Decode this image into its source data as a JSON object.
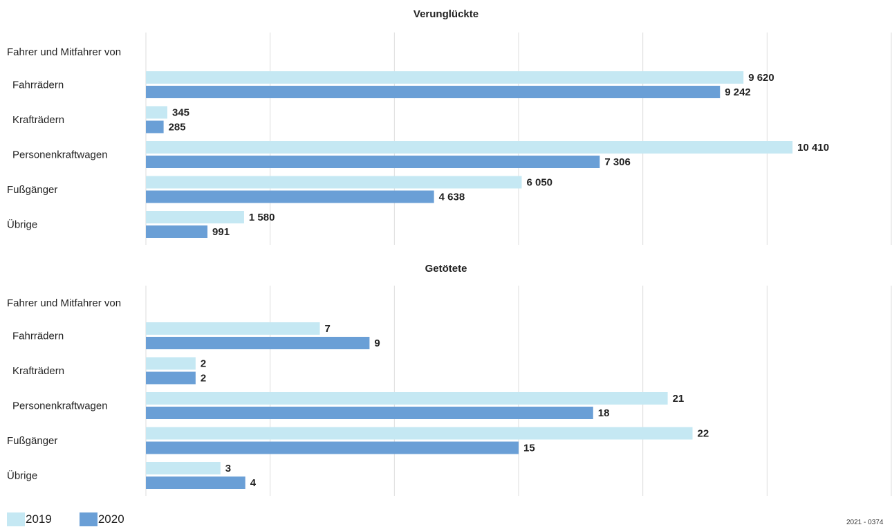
{
  "colors": {
    "y2019": "#c5e8f3",
    "y2020": "#6a9fd6",
    "grid": "#dcdcdc"
  },
  "legend": {
    "y2019": "2019",
    "y2020": "2020"
  },
  "source_code": "2021 - 0374",
  "chart_data": [
    {
      "type": "bar",
      "orientation": "horizontal",
      "title": "Verunglückte",
      "group_header": "Fahrer und Mitfahrer von",
      "categories": [
        "Fahrrädern",
        "Krafträdern",
        "Personenkraftwagen",
        "Fußgänger",
        "Übrige"
      ],
      "series": [
        {
          "name": "2019",
          "values": [
            9620,
            345,
            10410,
            6050,
            1580
          ],
          "labels": [
            "9 620",
            "345",
            "10 410",
            "6 050",
            "1 580"
          ]
        },
        {
          "name": "2020",
          "values": [
            9242,
            285,
            7306,
            4638,
            991
          ],
          "labels": [
            "9 242",
            "285",
            "7 306",
            "4 638",
            "991"
          ]
        }
      ],
      "xlim": [
        0,
        12000
      ],
      "grid": true,
      "legend_position": "bottom-left"
    },
    {
      "type": "bar",
      "orientation": "horizontal",
      "title": "Getötete",
      "group_header": "Fahrer und Mitfahrer von",
      "categories": [
        "Fahrrädern",
        "Krafträdern",
        "Personenkraftwagen",
        "Fußgänger",
        "Übrige"
      ],
      "series": [
        {
          "name": "2019",
          "values": [
            7,
            2,
            21,
            22,
            3
          ],
          "labels": [
            "7",
            "2",
            "21",
            "22",
            "3"
          ]
        },
        {
          "name": "2020",
          "values": [
            9,
            2,
            18,
            15,
            4
          ],
          "labels": [
            "9",
            "2",
            "18",
            "15",
            "4"
          ]
        }
      ],
      "xlim": [
        0,
        30
      ],
      "grid": true,
      "legend_position": "bottom-left"
    }
  ]
}
